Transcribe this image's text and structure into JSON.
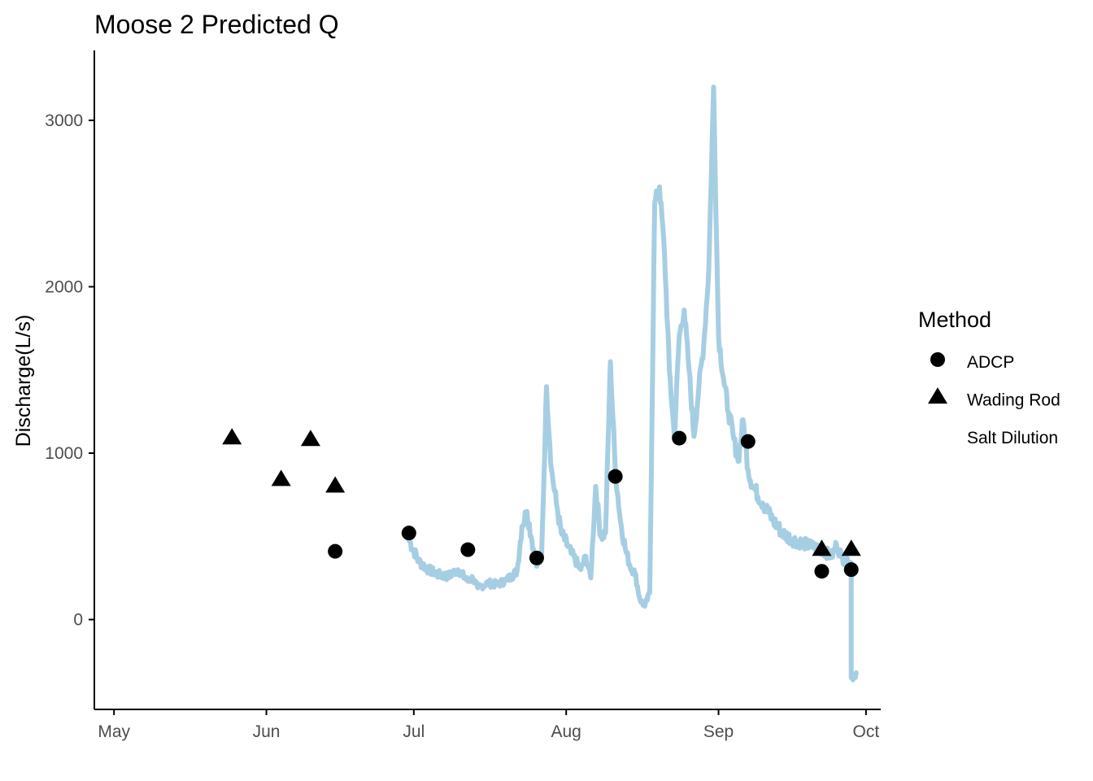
{
  "chart_data": {
    "type": "line",
    "title": "Moose 2 Predicted Q",
    "xlabel": "",
    "ylabel": "Discharge(L/s)",
    "x_type": "date",
    "xlim": [
      "2023-04-27",
      "2023-10-04"
    ],
    "ylim": [
      -540,
      3420
    ],
    "x_ticks": [
      {
        "date": "2023-05-01",
        "label": "May"
      },
      {
        "date": "2023-06-01",
        "label": "Jun"
      },
      {
        "date": "2023-07-01",
        "label": "Jul"
      },
      {
        "date": "2023-08-01",
        "label": "Aug"
      },
      {
        "date": "2023-09-01",
        "label": "Sep"
      },
      {
        "date": "2023-10-01",
        "label": "Oct"
      }
    ],
    "y_ticks": [
      0,
      1000,
      2000,
      3000
    ],
    "grid": false,
    "legend": {
      "title": "Method",
      "position": "right",
      "entries": [
        {
          "label": "ADCP",
          "shape": "circle"
        },
        {
          "label": "Wading Rod",
          "shape": "triangle"
        },
        {
          "label": "Salt Dilution",
          "shape": "none"
        }
      ]
    },
    "series": [
      {
        "kind": "line",
        "color": "#a6cee3",
        "x": [
          "2023-06-30",
          "2023-07-02",
          "2023-07-04",
          "2023-07-06",
          "2023-07-08",
          "2023-07-10",
          "2023-07-12",
          "2023-07-13",
          "2023-07-14",
          "2023-07-16",
          "2023-07-18",
          "2023-07-20",
          "2023-07-22",
          "2023-07-23",
          "2023-07-24",
          "2023-07-25",
          "2023-07-26",
          "2023-07-27",
          "2023-07-28",
          "2023-07-29",
          "2023-07-30",
          "2023-07-31",
          "2023-08-02",
          "2023-08-04",
          "2023-08-05",
          "2023-08-06",
          "2023-08-07",
          "2023-08-08",
          "2023-08-09",
          "2023-08-10",
          "2023-08-11",
          "2023-08-12",
          "2023-08-13",
          "2023-08-14",
          "2023-08-15",
          "2023-08-16",
          "2023-08-17",
          "2023-08-18",
          "2023-08-19",
          "2023-08-20",
          "2023-08-21",
          "2023-08-22",
          "2023-08-23",
          "2023-08-24",
          "2023-08-25",
          "2023-08-26",
          "2023-08-27",
          "2023-08-28",
          "2023-08-29",
          "2023-08-30",
          "2023-08-31",
          "2023-09-01",
          "2023-09-02",
          "2023-09-03",
          "2023-09-04",
          "2023-09-05",
          "2023-09-06",
          "2023-09-07",
          "2023-09-08",
          "2023-09-10",
          "2023-09-12",
          "2023-09-14",
          "2023-09-16",
          "2023-09-18",
          "2023-09-20",
          "2023-09-22",
          "2023-09-24",
          "2023-09-25",
          "2023-09-26",
          "2023-09-27",
          "2023-09-28",
          "2023-09-28",
          "2023-09-29"
        ],
        "values": [
          480,
          350,
          300,
          270,
          260,
          300,
          230,
          250,
          190,
          220,
          210,
          240,
          290,
          560,
          650,
          480,
          320,
          380,
          1400,
          900,
          700,
          520,
          400,
          300,
          380,
          250,
          800,
          500,
          520,
          1550,
          900,
          600,
          430,
          320,
          280,
          120,
          80,
          160,
          2500,
          2600,
          2200,
          1500,
          1100,
          1700,
          1860,
          1500,
          1100,
          1400,
          1650,
          2100,
          3200,
          1700,
          1450,
          1250,
          1100,
          950,
          1200,
          900,
          800,
          700,
          600,
          520,
          480,
          460,
          440,
          420,
          380,
          450,
          380,
          340,
          340,
          -350,
          -320
        ]
      },
      {
        "kind": "points",
        "name": "ADCP",
        "shape": "circle",
        "x": [
          "2023-06-15",
          "2023-06-30",
          "2023-07-12",
          "2023-07-26",
          "2023-08-11",
          "2023-08-24",
          "2023-09-07",
          "2023-09-22",
          "2023-09-28"
        ],
        "values": [
          410,
          520,
          420,
          370,
          860,
          1090,
          1070,
          290,
          300
        ]
      },
      {
        "kind": "points",
        "name": "Wading Rod",
        "shape": "triangle",
        "x": [
          "2023-05-25",
          "2023-06-04",
          "2023-06-10",
          "2023-06-15",
          "2023-09-22",
          "2023-09-28"
        ],
        "values": [
          1090,
          840,
          1080,
          800,
          420,
          420
        ]
      }
    ]
  }
}
